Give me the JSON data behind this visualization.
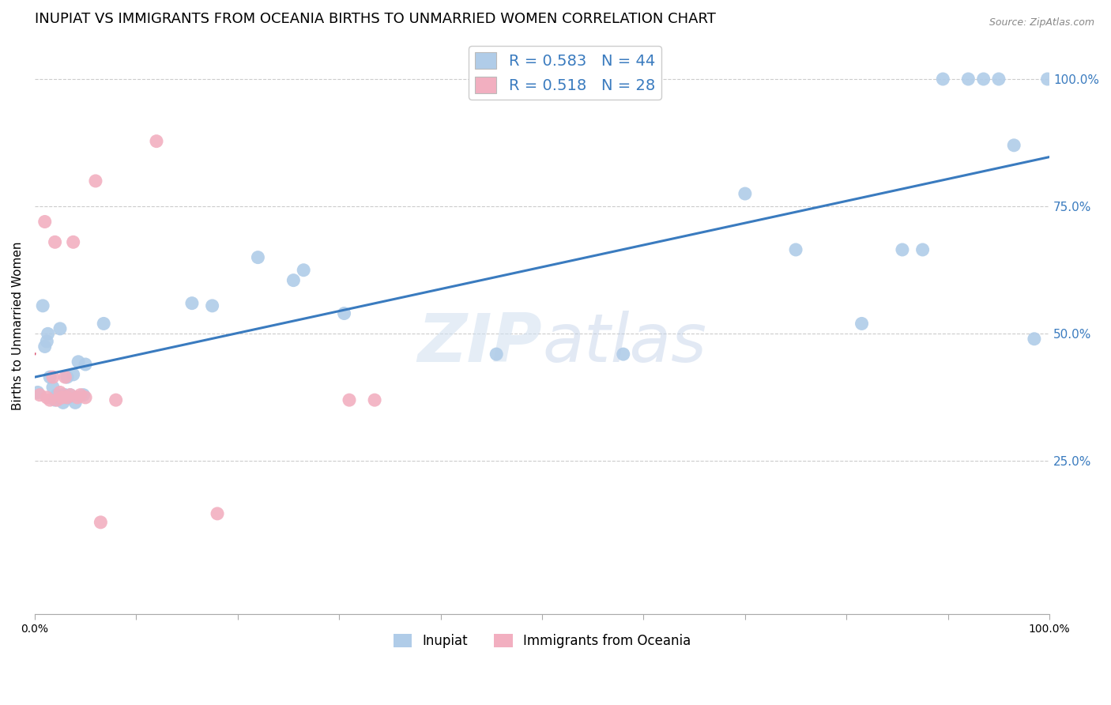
{
  "title": "INUPIAT VS IMMIGRANTS FROM OCEANIA BIRTHS TO UNMARRIED WOMEN CORRELATION CHART",
  "source": "Source: ZipAtlas.com",
  "ylabel": "Births to Unmarried Women",
  "watermark": "ZIPatlas",
  "xlim": [
    0.0,
    1.0
  ],
  "ylim": [
    -0.05,
    1.08
  ],
  "ytick_labels": [
    "25.0%",
    "50.0%",
    "75.0%",
    "100.0%"
  ],
  "ytick_values": [
    0.25,
    0.5,
    0.75,
    1.0
  ],
  "legend_color1": "#b0cce8",
  "legend_color2": "#f2afc0",
  "dot_color1": "#b0cce8",
  "dot_color2": "#f2afc0",
  "line_color1": "#3a7bbf",
  "line_color2": "#d94f6e",
  "background_color": "#ffffff",
  "grid_color": "#cccccc",
  "title_fontsize": 13,
  "axis_label_fontsize": 11,
  "tick_fontsize": 11,
  "legend_fontsize": 14,
  "inupiat_x": [
    0.003,
    0.008,
    0.01,
    0.012,
    0.013,
    0.015,
    0.018,
    0.02,
    0.022,
    0.023,
    0.025,
    0.027,
    0.028,
    0.03,
    0.031,
    0.032,
    0.033,
    0.035,
    0.038,
    0.04,
    0.043,
    0.048,
    0.05,
    0.068,
    0.155,
    0.175,
    0.22,
    0.255,
    0.265,
    0.305,
    0.455,
    0.58,
    0.7,
    0.75,
    0.815,
    0.855,
    0.875,
    0.895,
    0.92,
    0.935,
    0.95,
    0.965,
    0.985,
    0.998
  ],
  "inupiat_y": [
    0.385,
    0.555,
    0.475,
    0.485,
    0.5,
    0.415,
    0.395,
    0.37,
    0.38,
    0.375,
    0.51,
    0.38,
    0.365,
    0.38,
    0.375,
    0.415,
    0.375,
    0.38,
    0.42,
    0.365,
    0.445,
    0.38,
    0.44,
    0.52,
    0.56,
    0.555,
    0.65,
    0.605,
    0.625,
    0.54,
    0.46,
    0.46,
    0.775,
    0.665,
    0.52,
    0.665,
    0.665,
    1.0,
    1.0,
    1.0,
    1.0,
    0.87,
    0.49,
    1.0
  ],
  "oceania_x": [
    0.005,
    0.01,
    0.012,
    0.015,
    0.018,
    0.02,
    0.022,
    0.025,
    0.027,
    0.03,
    0.032,
    0.035,
    0.038,
    0.042,
    0.045,
    0.05,
    0.06,
    0.065,
    0.08,
    0.12,
    0.18,
    0.31,
    0.335
  ],
  "oceania_y": [
    0.38,
    0.72,
    0.375,
    0.37,
    0.415,
    0.68,
    0.37,
    0.385,
    0.375,
    0.415,
    0.375,
    0.38,
    0.68,
    0.375,
    0.38,
    0.375,
    0.8,
    0.13,
    0.37,
    0.878,
    0.147,
    0.37,
    0.37
  ],
  "dot_size": 150,
  "num_xticks": 10
}
